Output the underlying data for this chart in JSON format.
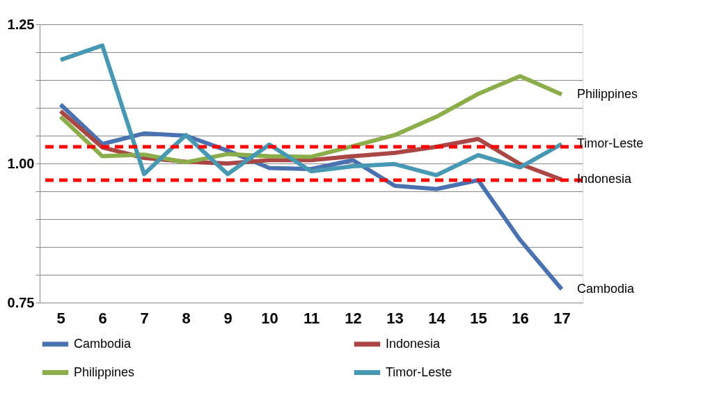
{
  "chart_data": {
    "type": "line",
    "categories": [
      "5",
      "6",
      "7",
      "8",
      "9",
      "10",
      "11",
      "12",
      "13",
      "14",
      "15",
      "16",
      "17"
    ],
    "series": [
      {
        "name": "Cambodia",
        "color": "#4a72b0",
        "values": [
          1.106,
          1.035,
          1.054,
          1.05,
          1.023,
          0.992,
          0.99,
          1.006,
          0.96,
          0.954,
          0.97,
          0.863,
          0.774
        ]
      },
      {
        "name": "Indonesia",
        "color": "#aa4644",
        "values": [
          1.094,
          1.029,
          1.01,
          1.003,
          1.0,
          1.006,
          1.006,
          1.013,
          1.019,
          1.03,
          1.044,
          0.999,
          0.971
        ]
      },
      {
        "name": "Philippines",
        "color": "#8cae4a",
        "values": [
          1.084,
          1.013,
          1.016,
          1.002,
          1.017,
          1.013,
          1.012,
          1.031,
          1.051,
          1.084,
          1.125,
          1.157,
          1.124
        ]
      },
      {
        "name": "Timor-Leste",
        "color": "#4698b3",
        "values": [
          1.186,
          1.212,
          0.981,
          1.051,
          0.981,
          1.034,
          0.986,
          0.995,
          0.999,
          0.979,
          1.015,
          0.993,
          1.035
        ]
      }
    ],
    "ylim": [
      0.75,
      1.25
    ],
    "yticks": [
      {
        "value": 0.75,
        "label": "0.75"
      },
      {
        "value": 0.8,
        "label": null
      },
      {
        "value": 0.85,
        "label": null
      },
      {
        "value": 0.9,
        "label": null
      },
      {
        "value": 0.95,
        "label": null
      },
      {
        "value": 1.0,
        "label": "1.00"
      },
      {
        "value": 1.05,
        "label": null
      },
      {
        "value": 1.1,
        "label": null
      },
      {
        "value": 1.15,
        "label": null
      },
      {
        "value": 1.2,
        "label": null
      },
      {
        "value": 1.25,
        "label": "1.25"
      }
    ],
    "ref_lines": [
      {
        "axis": "y",
        "value": 1.03,
        "color": "#ff0000",
        "line_style": "dashed"
      },
      {
        "axis": "y",
        "value": 0.97,
        "color": "#ff0000",
        "line_style": "dashed"
      }
    ],
    "grid": "y",
    "legend": "bottom",
    "marker": "none",
    "line_style": "solid"
  }
}
